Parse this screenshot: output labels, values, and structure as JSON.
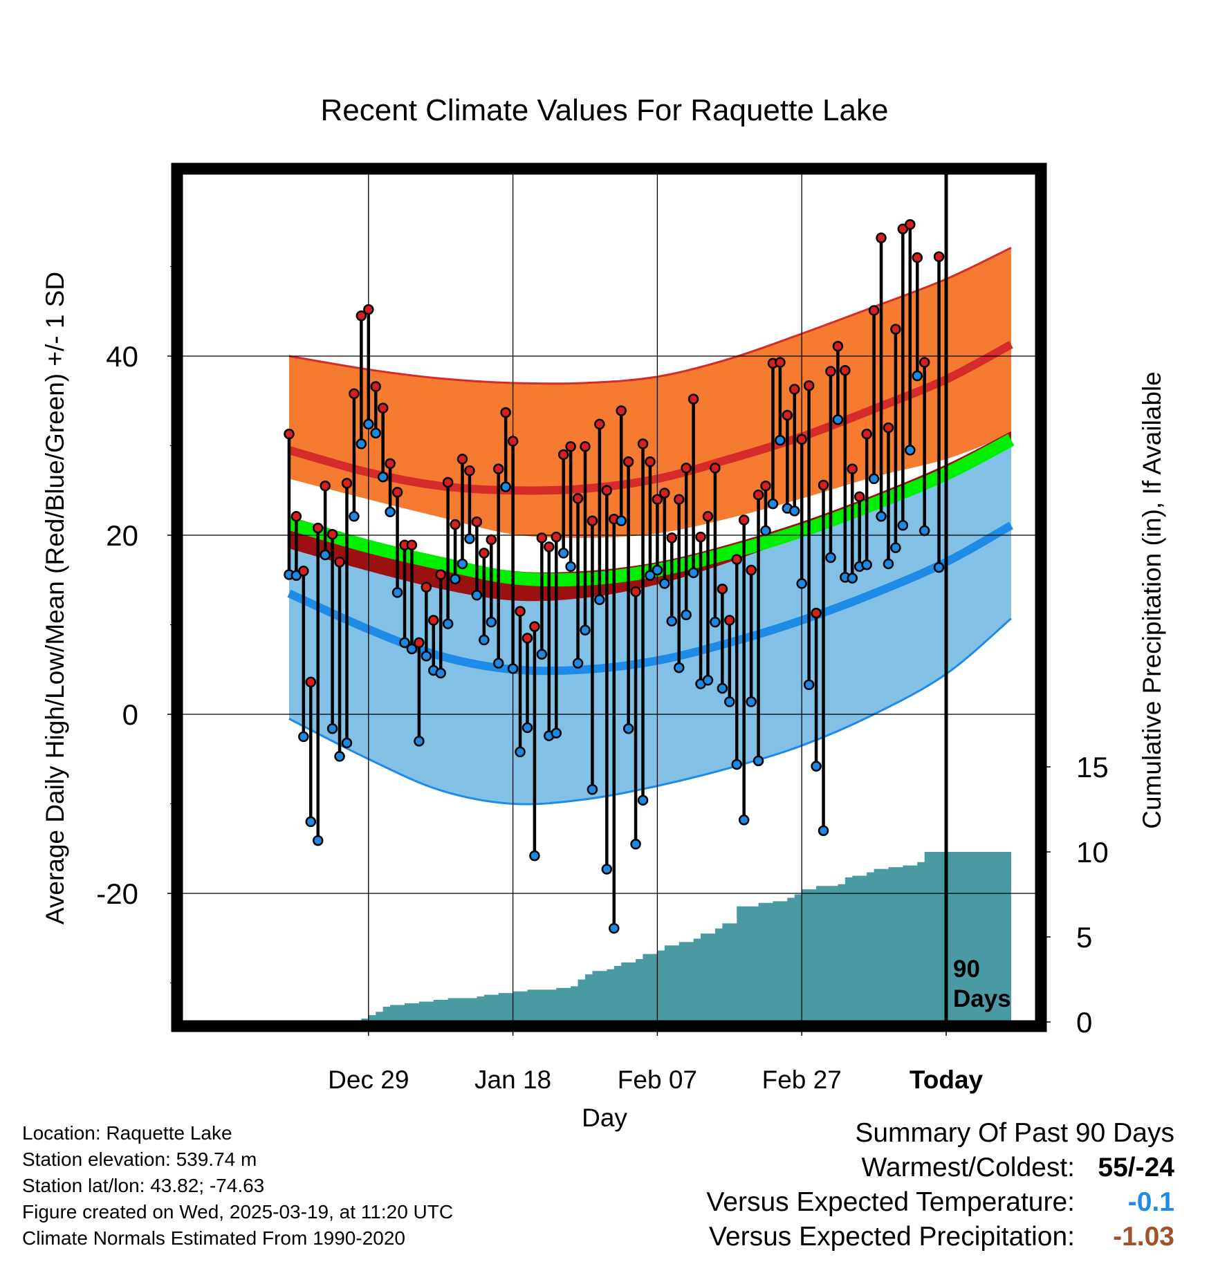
{
  "title": "Recent Climate Values For Raquette Lake",
  "y_left_label": "Average Daily High/Low/Mean (Red/Blue/Green) +/- 1 SD",
  "y_right_label": "Cumulative Precipitation (in), If Available",
  "x_label": "Day",
  "days_marker": [
    "90",
    "Days"
  ],
  "colors": {
    "high_band": "#f47b30",
    "high_line": "#d62b2b",
    "mean_band": "#9b1010",
    "mean_line": "#00ee00",
    "low_band": "#82c0e6",
    "low_line": "#1e8ce6",
    "precip": "#4a9aa3",
    "high_dot": "#d62020",
    "low_dot": "#1e88e5"
  },
  "info": {
    "location": "Location: Raquette Lake",
    "elevation": "Station elevation: 539.74 m",
    "latlon": "Station lat/lon: 43.82; -74.63",
    "created": "Figure created on Wed, 2025-03-19, at 11:20 UTC",
    "normals": "Climate Normals Estimated From 1990-2020"
  },
  "summary": {
    "heading": "Summary Of Past 90 Days",
    "warmest_label": "Warmest/Coldest:",
    "warmest_value": "55/-24",
    "temp_label": "Versus Expected Temperature:",
    "temp_value": "-0.1",
    "temp_color": "#1e8ce6",
    "precip_label": "Versus Expected Precipitation:",
    "precip_value": "-1.03",
    "precip_color": "#a0522d"
  },
  "chart_data": {
    "type": "line",
    "x_axis": {
      "ticks": [
        {
          "day": -80,
          "label": "Dec 29"
        },
        {
          "day": -60,
          "label": "Jan 18"
        },
        {
          "day": -40,
          "label": "Feb 07"
        },
        {
          "day": -20,
          "label": "Feb 27"
        },
        {
          "day": 0,
          "label": "Today"
        }
      ],
      "range_days_relative_to_today": [
        -91,
        9
      ]
    },
    "y_left": {
      "ticks": [
        -20,
        0,
        20,
        40
      ],
      "minor_ticks": [
        -30,
        -10,
        10,
        30,
        50
      ],
      "range": [
        -33.5,
        60.5
      ]
    },
    "y_right": {
      "ticks": [
        0,
        5,
        10,
        15
      ],
      "range": [
        0,
        20
      ]
    },
    "grid": true,
    "normals": {
      "day": [
        -91,
        -80,
        -70,
        -60,
        -50,
        -40,
        -30,
        -20,
        -10,
        0,
        9
      ],
      "high_upper": [
        40,
        38.5,
        37.5,
        37,
        37,
        37.7,
        39.7,
        42.5,
        45.5,
        48.6,
        52.1
      ],
      "high_mean": [
        29.5,
        27,
        25.5,
        25,
        25.2,
        26.3,
        28.5,
        31,
        34.1,
        37.4,
        41.3
      ],
      "high_lower": [
        26.3,
        24,
        22,
        20.1,
        19.7,
        20.2,
        21.9,
        24.1,
        26.5,
        28.5,
        31.3
      ],
      "mean_upper": [
        22.1,
        19.5,
        17.6,
        16,
        16,
        17,
        19,
        21.5,
        24.5,
        27.9,
        31.6
      ],
      "mean_lower": [
        20.5,
        18,
        16.1,
        14.5,
        14.2,
        15.2,
        17.1,
        19.5,
        22.5,
        25.8,
        29.7
      ],
      "low_upper": [
        18.5,
        16,
        14,
        12.7,
        13,
        14.5,
        17,
        20,
        23.5,
        27,
        30.5
      ],
      "low_mean": [
        13.5,
        9.5,
        6.5,
        5,
        5,
        6,
        8,
        10.5,
        13.5,
        17,
        21.1
      ],
      "low_lower": [
        -0.5,
        -5,
        -8.5,
        -10,
        -9.5,
        -8,
        -6,
        -3.5,
        0,
        4.5,
        10.7
      ]
    },
    "daily": {
      "day": [
        -91,
        -90,
        -89,
        -88,
        -87,
        -86,
        -85,
        -84,
        -83,
        -82,
        -81,
        -80,
        -79,
        -78,
        -77,
        -76,
        -75,
        -74,
        -73,
        -72,
        -71,
        -70,
        -69,
        -68,
        -67,
        -66,
        -65,
        -64,
        -63,
        -62,
        -61,
        -60,
        -59,
        -58,
        -57,
        -56,
        -55,
        -54,
        -53,
        -52,
        -51,
        -50,
        -49,
        -48,
        -47,
        -46,
        -45,
        -44,
        -43,
        -42,
        -41,
        -40,
        -39,
        -38,
        -37,
        -36,
        -35,
        -34,
        -33,
        -32,
        -31,
        -30,
        -29,
        -28,
        -27,
        -26,
        -25,
        -24,
        -23,
        -22,
        -21,
        -20,
        -19,
        -18,
        -17,
        -16,
        -15,
        -14,
        -13,
        -12,
        -11,
        -10,
        -9,
        -8,
        -7,
        -6,
        -5,
        -4,
        -3,
        -1
      ],
      "high": [
        31.3,
        22.1,
        16,
        3.6,
        20.8,
        25.5,
        20.1,
        17,
        25.8,
        35.8,
        44.5,
        45.2,
        36.6,
        34.2,
        28,
        24.8,
        18.9,
        18.9,
        8,
        14.2,
        10.5,
        15.6,
        25.9,
        21.2,
        28.5,
        27.2,
        21.5,
        18,
        19.5,
        27.4,
        33.7,
        30.5,
        11.5,
        8.5,
        9.8,
        19.7,
        18.7,
        19.8,
        29,
        29.9,
        24.1,
        29.9,
        21.6,
        32.4,
        25,
        21.8,
        33.9,
        28.2,
        13.7,
        30.2,
        28.2,
        24,
        24.7,
        19.7,
        24,
        27.5,
        35.2,
        19.8,
        22.1,
        27.5,
        14,
        10.5,
        17.3,
        21.7,
        16.1,
        24.5,
        25.5,
        39.2,
        39.3,
        33.4,
        36.3,
        30.7,
        36.7,
        11.3,
        25.6,
        38.3,
        41.1,
        38.4,
        27.4,
        24.3,
        31.3,
        45.1,
        53.2,
        32,
        43,
        54.2,
        54.7,
        51,
        39.3,
        51.1
      ],
      "low": [
        15.6,
        15.5,
        -2.5,
        -12,
        -14.1,
        17.8,
        -1.6,
        -4.7,
        -3.2,
        22.1,
        30.2,
        32.4,
        31.4,
        26.5,
        22.6,
        13.6,
        8,
        7.3,
        -3,
        6.5,
        4.9,
        4.6,
        10.1,
        15.1,
        16.8,
        19.6,
        13.3,
        8.3,
        10.3,
        5.7,
        25.4,
        5.1,
        -4.2,
        -1.5,
        -15.8,
        6.7,
        -2.4,
        -2.1,
        18,
        16.5,
        5.7,
        9.4,
        -8.4,
        12.8,
        -17.3,
        -23.9,
        21.6,
        -1.6,
        -14.5,
        -9.6,
        15.5,
        16.1,
        14.6,
        10.4,
        5.2,
        11.1,
        15.8,
        3.4,
        3.8,
        10.3,
        2.9,
        1.4,
        -5.6,
        -11.8,
        1.4,
        -5.2,
        20.5,
        23.5,
        30.6,
        23,
        22.7,
        14.6,
        3.3,
        -5.8,
        -13,
        17.5,
        32.9,
        15.3,
        15.2,
        16.5,
        16.7,
        26.3,
        22.1,
        16.8,
        18.6,
        21.1,
        29.5,
        37.8,
        20.5,
        16.4
      ]
    },
    "cumulative_precip": {
      "day": [
        -86,
        -85,
        -83,
        -81,
        -80,
        -79,
        -78,
        -77,
        -75,
        -73,
        -71,
        -69,
        -67,
        -65,
        -64,
        -62,
        -60,
        -58,
        -56,
        -54,
        -52,
        -51,
        -50,
        -49,
        -47,
        -46,
        -45,
        -43,
        -42,
        -40,
        -39,
        -37,
        -35,
        -34,
        -32,
        -31,
        -29,
        -26,
        -24,
        -22,
        -21,
        -20,
        -18,
        -15,
        -14,
        -13,
        -11,
        -10,
        -8,
        -6,
        -4,
        -3,
        9
      ],
      "inches": [
        0.1,
        0.1,
        0.1,
        0.2,
        0.4,
        0.6,
        0.9,
        1.0,
        1.1,
        1.2,
        1.3,
        1.4,
        1.4,
        1.5,
        1.6,
        1.7,
        1.8,
        1.9,
        1.9,
        2.0,
        2.1,
        2.5,
        2.8,
        3.0,
        3.1,
        3.3,
        3.5,
        3.7,
        4.0,
        4.2,
        4.5,
        4.7,
        4.9,
        5.2,
        5.5,
        5.8,
        6.8,
        7.0,
        7.1,
        7.3,
        7.5,
        7.8,
        8.0,
        8.1,
        8.5,
        8.6,
        8.8,
        9.0,
        9.1,
        9.2,
        9.4,
        10.0,
        10.0
      ]
    }
  }
}
